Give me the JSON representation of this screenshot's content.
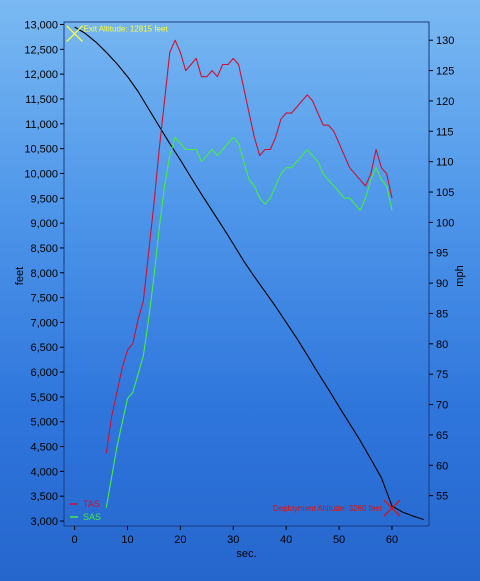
{
  "chart_data": {
    "type": "line",
    "xlabel": "sec.",
    "ylabel": "feet",
    "y2label": "mph",
    "xlim": [
      -2,
      67
    ],
    "ylim": [
      2900,
      13050
    ],
    "y2lim": [
      50.0,
      133.0
    ],
    "xticks": [
      "0",
      "10",
      "20",
      "30",
      "40",
      "50",
      "60"
    ],
    "yticks": [
      "3,000",
      "3,500",
      "4,000",
      "4,500",
      "5,000",
      "5,500",
      "6,000",
      "6,500",
      "7,000",
      "7,500",
      "8,000",
      "8,500",
      "9,000",
      "9,500",
      "10,000",
      "10,500",
      "11,000",
      "11,500",
      "12,000",
      "12,500",
      "13,000"
    ],
    "y2ticks": [
      "55",
      "60",
      "65",
      "70",
      "75",
      "80",
      "85",
      "90",
      "95",
      "100",
      "105",
      "110",
      "115",
      "120",
      "125",
      "130"
    ],
    "grid": false,
    "legend": "bottom-left",
    "series": [
      {
        "name": "",
        "axis": "left",
        "color": "#000000",
        "x": [
          0,
          2,
          4,
          6,
          8,
          10,
          12,
          14,
          16,
          18,
          20,
          22,
          24,
          26,
          28,
          30,
          32,
          34,
          36,
          38,
          40,
          42,
          44,
          46,
          48,
          50,
          52,
          54,
          56,
          58,
          60,
          62,
          64,
          66
        ],
        "y": [
          12950,
          12820,
          12650,
          12440,
          12210,
          11950,
          11650,
          11300,
          10950,
          10600,
          10270,
          9920,
          9580,
          9250,
          8920,
          8580,
          8230,
          7920,
          7620,
          7320,
          7000,
          6680,
          6340,
          5990,
          5650,
          5300,
          4960,
          4620,
          4250,
          3870,
          3300,
          3180,
          3100,
          3030
        ]
      },
      {
        "name": "TAS",
        "axis": "right",
        "color": "#cc1133",
        "x": [
          6,
          7,
          8,
          9,
          10,
          11,
          12,
          13,
          14,
          15,
          16,
          17,
          18,
          19,
          20,
          21,
          22,
          23,
          24,
          25,
          26,
          27,
          28,
          29,
          30,
          31,
          32,
          33,
          34,
          35,
          36,
          37,
          38,
          39,
          40,
          41,
          42,
          43,
          44,
          45,
          46,
          47,
          48,
          49,
          50,
          51,
          52,
          53,
          54,
          55,
          56,
          57,
          58,
          59,
          60
        ],
        "y": [
          62,
          68,
          72,
          76,
          79,
          80,
          84,
          87,
          95,
          103,
          112,
          120,
          128,
          130,
          128,
          125,
          126,
          127,
          124,
          124,
          125,
          124,
          126,
          126,
          127,
          126,
          122,
          118,
          114,
          111,
          112,
          112,
          114,
          117,
          118,
          118,
          119,
          120,
          121,
          120,
          118,
          116,
          116,
          115,
          113,
          111,
          109,
          108,
          107,
          106,
          108,
          112,
          109,
          108,
          104
        ]
      },
      {
        "name": "SAS",
        "axis": "right",
        "color": "#44ee44",
        "x": [
          6,
          7,
          8,
          9,
          10,
          11,
          12,
          13,
          14,
          15,
          16,
          17,
          18,
          19,
          20,
          21,
          22,
          23,
          24,
          25,
          26,
          27,
          28,
          29,
          30,
          31,
          32,
          33,
          34,
          35,
          36,
          37,
          38,
          39,
          40,
          41,
          42,
          43,
          44,
          45,
          46,
          47,
          48,
          49,
          50,
          51,
          52,
          53,
          54,
          55,
          56,
          57,
          58,
          59,
          60
        ],
        "y": [
          53,
          58,
          63,
          67,
          71,
          72,
          75,
          78,
          84,
          91,
          99,
          106,
          111,
          114,
          113,
          112,
          112,
          112,
          110,
          111,
          112,
          111,
          112,
          113,
          114,
          113,
          110,
          107,
          106,
          104,
          103,
          104,
          106,
          108,
          109,
          109,
          110,
          111,
          112,
          111,
          110,
          108,
          107,
          106,
          105,
          104,
          104,
          103,
          102,
          104,
          107,
          109,
          107,
          106,
          102
        ]
      }
    ],
    "annotations": [
      {
        "text": "Exit Altitude: 12815 feet",
        "x": 0,
        "y": 12815,
        "color": "#ffff33"
      },
      {
        "text": "Deployment Altitude: 3260 feet",
        "x": 60,
        "y": 3260,
        "color": "#dd1111"
      }
    ]
  }
}
